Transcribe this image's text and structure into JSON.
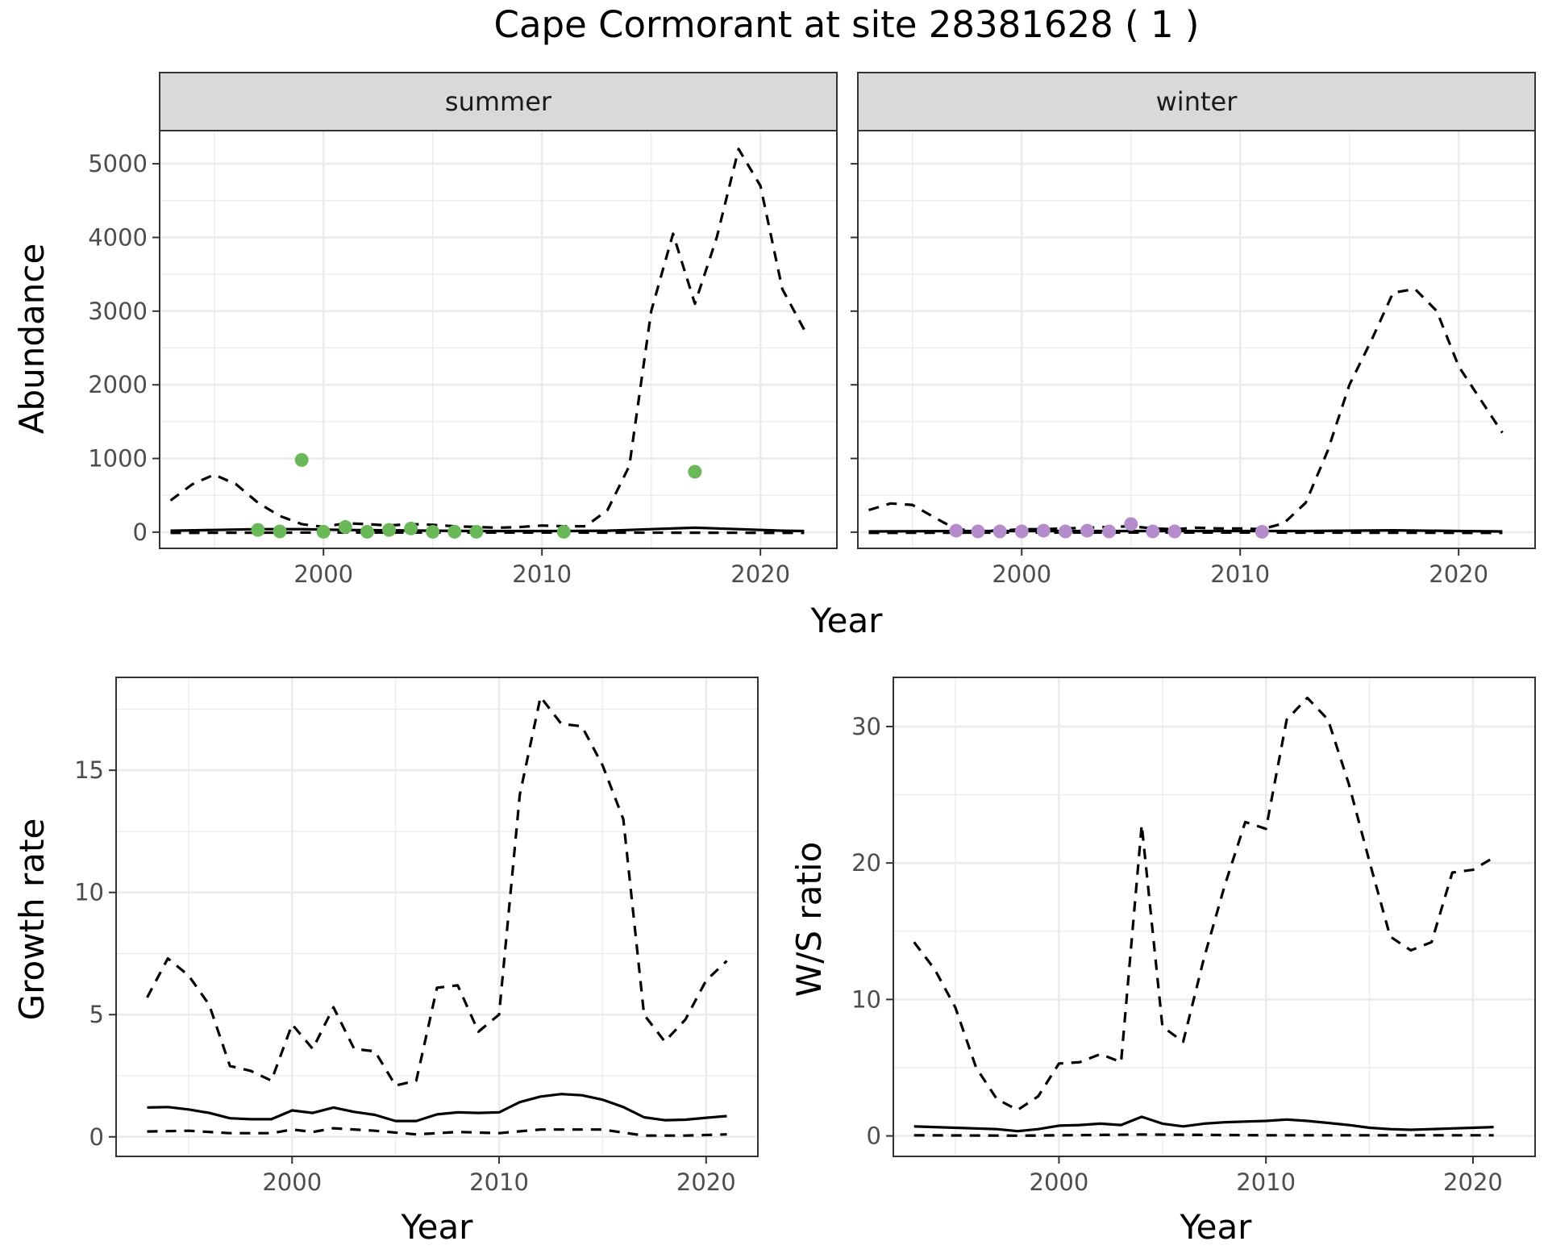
{
  "title": "Cape Cormorant at site 28381628 ( 1 )",
  "colors": {
    "summer_points": "#6ab857",
    "winter_points": "#b48ccb",
    "lines": "#000000",
    "strip_bg": "#d9d9d9"
  },
  "chart_data": [
    {
      "type": "line",
      "facet": "summer",
      "xlabel": "Year",
      "ylabel": "Abundance",
      "xlim": [
        1992.5,
        2023.5
      ],
      "ylim": [
        -220,
        5450
      ],
      "xticks": [
        2000,
        2010,
        2020
      ],
      "yticks": [
        0,
        1000,
        2000,
        3000,
        4000,
        5000
      ],
      "grid": true,
      "series": [
        {
          "style": "solid",
          "x": [
            1993,
            1995,
            1997,
            1999,
            2001,
            2003,
            2005,
            2007,
            2009,
            2011,
            2013,
            2015,
            2017,
            2019,
            2021,
            2022
          ],
          "y": [
            20,
            30,
            40,
            40,
            30,
            25,
            20,
            15,
            15,
            15,
            20,
            40,
            60,
            40,
            20,
            15
          ]
        },
        {
          "style": "dashed",
          "x": [
            1993,
            1994,
            1995,
            1996,
            1997,
            1998,
            1999,
            2000,
            2001,
            2002,
            2003,
            2004,
            2005,
            2006,
            2007,
            2008,
            2009,
            2010,
            2011,
            2012,
            2013,
            2014,
            2015,
            2016,
            2017,
            2018,
            2019,
            2020,
            2021,
            2022
          ],
          "y": [
            430,
            650,
            780,
            650,
            400,
            220,
            110,
            70,
            120,
            110,
            90,
            110,
            100,
            80,
            70,
            60,
            70,
            90,
            80,
            80,
            300,
            900,
            3000,
            4050,
            3100,
            4000,
            5200,
            4700,
            3300,
            2750
          ]
        },
        {
          "style": "dashed",
          "x": [
            1993,
            2000,
            2010,
            2022
          ],
          "y": [
            -10,
            -5,
            -5,
            -10
          ]
        },
        {
          "style": "points",
          "x": [
            1997,
            1998,
            1999,
            2000,
            2001,
            2002,
            2003,
            2004,
            2005,
            2006,
            2007,
            2011,
            2017
          ],
          "y": [
            30,
            10,
            980,
            5,
            70,
            5,
            30,
            50,
            5,
            5,
            5,
            5,
            820
          ]
        }
      ]
    },
    {
      "type": "line",
      "facet": "winter",
      "xlabel": "Year",
      "ylabel": "Abundance",
      "xlim": [
        1992.5,
        2023.5
      ],
      "ylim": [
        -220,
        5450
      ],
      "xticks": [
        2000,
        2010,
        2020
      ],
      "yticks": [
        0,
        1000,
        2000,
        3000,
        4000,
        5000
      ],
      "grid": true,
      "series": [
        {
          "style": "solid",
          "x": [
            1993,
            1997,
            2001,
            2005,
            2009,
            2013,
            2017,
            2020,
            2022
          ],
          "y": [
            10,
            15,
            15,
            15,
            15,
            15,
            25,
            15,
            10
          ]
        },
        {
          "style": "dashed",
          "x": [
            1993,
            1994,
            1995,
            1996,
            1997,
            1998,
            1999,
            2000,
            2001,
            2002,
            2003,
            2004,
            2005,
            2006,
            2007,
            2008,
            2009,
            2010,
            2011,
            2012,
            2013,
            2014,
            2015,
            2016,
            2017,
            2018,
            2019,
            2020,
            2021,
            2022
          ],
          "y": [
            300,
            390,
            370,
            200,
            40,
            20,
            20,
            40,
            40,
            50,
            60,
            70,
            80,
            50,
            40,
            60,
            50,
            50,
            40,
            120,
            400,
            1100,
            2000,
            2600,
            3250,
            3300,
            3000,
            2250,
            1800,
            1350
          ]
        },
        {
          "style": "dashed",
          "x": [
            1993,
            2000,
            2010,
            2022
          ],
          "y": [
            -10,
            -5,
            -5,
            -10
          ]
        },
        {
          "style": "points",
          "x": [
            1997,
            1998,
            1999,
            2000,
            2001,
            2002,
            2003,
            2004,
            2005,
            2006,
            2007,
            2011
          ],
          "y": [
            20,
            10,
            10,
            10,
            20,
            10,
            20,
            10,
            110,
            10,
            10,
            5
          ]
        }
      ]
    },
    {
      "type": "line",
      "xlabel": "Year",
      "ylabel": "Growth rate",
      "xlim": [
        1991.5,
        2022.5
      ],
      "ylim": [
        -0.8,
        18.8
      ],
      "xticks": [
        2000,
        2010,
        2020
      ],
      "yticks": [
        0,
        5,
        10,
        15
      ],
      "grid": true,
      "series": [
        {
          "style": "solid",
          "x": [
            1993,
            1994,
            1995,
            1996,
            1997,
            1998,
            1999,
            2000,
            2001,
            2002,
            2003,
            2004,
            2005,
            2006,
            2007,
            2008,
            2009,
            2010,
            2011,
            2012,
            2013,
            2014,
            2015,
            2016,
            2017,
            2018,
            2019,
            2020,
            2021
          ],
          "y": [
            1.2,
            1.22,
            1.12,
            0.98,
            0.76,
            0.72,
            0.72,
            1.08,
            0.98,
            1.2,
            1.02,
            0.9,
            0.65,
            0.65,
            0.92,
            1,
            0.98,
            1,
            1.42,
            1.65,
            1.75,
            1.7,
            1.52,
            1.22,
            0.8,
            0.68,
            0.7,
            0.78,
            0.85
          ]
        },
        {
          "style": "dashed",
          "x": [
            1993,
            1994,
            1995,
            1996,
            1997,
            1998,
            1999,
            2000,
            2001,
            2002,
            2003,
            2004,
            2005,
            2006,
            2007,
            2008,
            2009,
            2010,
            2011,
            2012,
            2013,
            2014,
            2015,
            2016,
            2017,
            2018,
            2019,
            2020,
            2021
          ],
          "y": [
            5.7,
            7.3,
            6.6,
            5.4,
            2.9,
            2.7,
            2.3,
            4.6,
            3.6,
            5.3,
            3.6,
            3.5,
            2.1,
            2.3,
            6.1,
            6.2,
            4.3,
            5,
            14,
            18,
            16.9,
            16.8,
            15.2,
            13,
            5,
            3.9,
            4.8,
            6.4,
            7.2
          ]
        },
        {
          "style": "dashed",
          "x": [
            1993,
            1995,
            1997,
            1999,
            2000,
            2001,
            2002,
            2004,
            2006,
            2008,
            2010,
            2012,
            2015,
            2017,
            2019,
            2021
          ],
          "y": [
            0.22,
            0.25,
            0.15,
            0.15,
            0.3,
            0.2,
            0.35,
            0.25,
            0.1,
            0.2,
            0.15,
            0.3,
            0.3,
            0.05,
            0.05,
            0.1
          ]
        }
      ]
    },
    {
      "type": "line",
      "xlabel": "Year",
      "ylabel": "W/S ratio",
      "xlim": [
        1992,
        2023
      ],
      "ylim": [
        -1.5,
        33.6
      ],
      "xticks": [
        2000,
        2010,
        2020
      ],
      "yticks": [
        0,
        10,
        20,
        30
      ],
      "grid": true,
      "series": [
        {
          "style": "solid",
          "x": [
            1993,
            1995,
            1997,
            1998,
            1999,
            2000,
            2001,
            2002,
            2003,
            2004,
            2005,
            2006,
            2007,
            2008,
            2009,
            2010,
            2011,
            2012,
            2013,
            2014,
            2015,
            2016,
            2017,
            2018,
            2019,
            2020,
            2021
          ],
          "y": [
            0.7,
            0.6,
            0.5,
            0.35,
            0.5,
            0.75,
            0.8,
            0.9,
            0.8,
            1.4,
            0.9,
            0.7,
            0.9,
            1,
            1.05,
            1.1,
            1.2,
            1.1,
            0.95,
            0.8,
            0.6,
            0.5,
            0.45,
            0.5,
            0.55,
            0.6,
            0.65
          ]
        },
        {
          "style": "dashed",
          "x": [
            1993,
            1994,
            1995,
            1996,
            1997,
            1998,
            1999,
            2000,
            2001,
            2002,
            2003,
            2004,
            2005,
            2006,
            2007,
            2008,
            2009,
            2010,
            2011,
            2012,
            2013,
            2014,
            2015,
            2016,
            2017,
            2018,
            2019,
            2020,
            2021
          ],
          "y": [
            14.2,
            12.2,
            9.4,
            5,
            2.7,
            1.9,
            2.9,
            5.3,
            5.4,
            6,
            5.4,
            22.8,
            8,
            6.9,
            13,
            18.3,
            23,
            22.5,
            30.5,
            32.1,
            30.5,
            25.8,
            20.1,
            14.6,
            13.6,
            14.2,
            19.3,
            19.5,
            20.4
          ]
        },
        {
          "style": "dashed",
          "x": [
            1993,
            1998,
            2004,
            2010,
            2015,
            2021
          ],
          "y": [
            0.05,
            0.02,
            0.1,
            0.05,
            0.05,
            0.05
          ]
        }
      ]
    }
  ],
  "strips": [
    "summer",
    "winter"
  ]
}
